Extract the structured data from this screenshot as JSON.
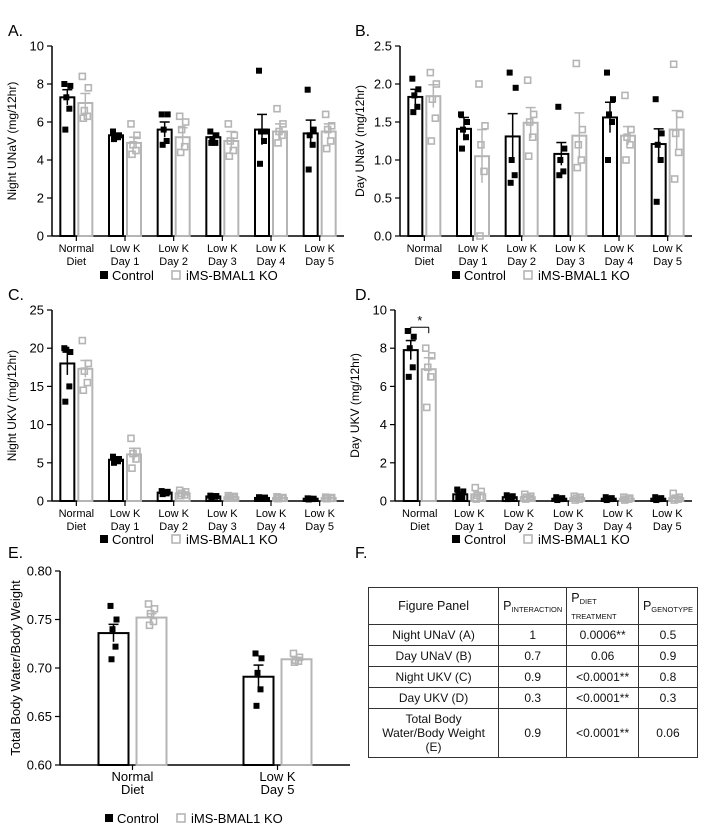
{
  "colors": {
    "control": "#000000",
    "ko": "#b5b5b5"
  },
  "legend": {
    "control": "Control",
    "ko": "iMS-BMAL1 KO"
  },
  "panels": {
    "a": {
      "letter": "A."
    },
    "b": {
      "letter": "B."
    },
    "c": {
      "letter": "C."
    },
    "d": {
      "letter": "D."
    },
    "e": {
      "letter": "E."
    },
    "f": {
      "letter": "F."
    }
  },
  "chart_data": [
    {
      "id": "A",
      "type": "bar",
      "ylabel": "Night UNaV (mg/12hr)",
      "ylim": [
        0,
        10
      ],
      "yticks": [
        0,
        2,
        4,
        6,
        8,
        10
      ],
      "ytick_labels": [
        "0",
        "2",
        "4",
        "6",
        "8",
        "10"
      ],
      "categories": [
        [
          "Normal",
          "Diet"
        ],
        [
          "Low K",
          "Day 1"
        ],
        [
          "Low K",
          "Day 2"
        ],
        [
          "Low K",
          "Day 3"
        ],
        [
          "Low K",
          "Day 4"
        ],
        [
          "Low K",
          "Day 5"
        ]
      ],
      "series": [
        {
          "name": "Control",
          "values": [
            7.3,
            5.3,
            5.6,
            5.2,
            5.6,
            5.4
          ],
          "sem": [
            0.4,
            0.1,
            0.4,
            0.2,
            0.8,
            0.7
          ],
          "points": [
            [
              8.0,
              7.9,
              7.3,
              6.7,
              5.6
            ],
            [
              5.5,
              5.3,
              5.2,
              5.2,
              5.1
            ],
            [
              6.4,
              6.4,
              5.6,
              5.0,
              4.8
            ],
            [
              5.5,
              5.3,
              5.1,
              4.9,
              4.9
            ],
            [
              8.7,
              5.5,
              5.5,
              5.0,
              3.8
            ],
            [
              7.7,
              5.6,
              5.3,
              4.8,
              3.5
            ]
          ]
        },
        {
          "name": "iMS-BMAL1 KO",
          "values": [
            7.0,
            4.9,
            5.2,
            5.0,
            5.5,
            5.5
          ],
          "sem": [
            0.5,
            0.3,
            0.5,
            0.5,
            0.4,
            0.4
          ],
          "points": [
            [
              8.4,
              7.8,
              6.6,
              6.3,
              6.2
            ],
            [
              5.9,
              5.3,
              4.8,
              4.5,
              4.3
            ],
            [
              6.3,
              6.0,
              5.6,
              4.7,
              4.4
            ],
            [
              5.9,
              5.3,
              5.0,
              4.5,
              4.2
            ],
            [
              6.7,
              5.9,
              5.5,
              5.3,
              4.9
            ],
            [
              6.4,
              5.8,
              5.6,
              5.0,
              4.6
            ]
          ]
        }
      ]
    },
    {
      "id": "B",
      "type": "bar",
      "ylabel": "Day UNaV (mg/12hr)",
      "ylim": [
        0,
        2.5
      ],
      "yticks": [
        0,
        0.5,
        1,
        1.5,
        2,
        2.5
      ],
      "ytick_labels": [
        "0.0",
        "0.5",
        "1.0",
        "1.5",
        "2.0",
        "2.5"
      ],
      "categories": [
        [
          "Normal",
          "Diet"
        ],
        [
          "Low K",
          "Day 1"
        ],
        [
          "Low K",
          "Day 2"
        ],
        [
          "Low K",
          "Day 3"
        ],
        [
          "Low K",
          "Day 4"
        ],
        [
          "Low K",
          "Day 5"
        ]
      ],
      "series": [
        {
          "name": "Control",
          "values": [
            1.83,
            1.41,
            1.31,
            1.08,
            1.56,
            1.21
          ],
          "sem": [
            0.1,
            0.15,
            0.3,
            0.15,
            0.2,
            0.2
          ],
          "points": [
            [
              2.07,
              1.93,
              1.85,
              1.7,
              1.63
            ],
            [
              1.6,
              1.5,
              1.4,
              1.3,
              1.15
            ],
            [
              2.15,
              1.95,
              1.0,
              0.8,
              0.7
            ],
            [
              1.7,
              1.15,
              1.0,
              0.85,
              0.8
            ],
            [
              2.15,
              1.8,
              1.6,
              1.5,
              1.0
            ],
            [
              1.8,
              1.35,
              1.2,
              1.0,
              0.45
            ]
          ]
        },
        {
          "name": "iMS-BMAL1 KO",
          "values": [
            1.84,
            1.05,
            1.49,
            1.32,
            1.32,
            1.4
          ],
          "sem": [
            0.15,
            0.35,
            0.2,
            0.3,
            0.12,
            0.25
          ],
          "points": [
            [
              2.15,
              2.0,
              1.8,
              1.55,
              1.25
            ],
            [
              2.0,
              1.45,
              1.2,
              0.85,
              0.0
            ],
            [
              2.05,
              1.6,
              1.5,
              1.3,
              1.05
            ],
            [
              2.27,
              1.4,
              1.2,
              1.0,
              0.9
            ],
            [
              1.85,
              1.4,
              1.3,
              1.2,
              1.0
            ],
            [
              2.26,
              1.6,
              1.35,
              1.1,
              0.75
            ]
          ]
        }
      ]
    },
    {
      "id": "C",
      "type": "bar",
      "ylabel": "Night UKV (mg/12hr)",
      "ylim": [
        0,
        25
      ],
      "yticks": [
        0,
        5,
        10,
        15,
        20,
        25
      ],
      "ytick_labels": [
        "0",
        "5",
        "10",
        "15",
        "20",
        "25"
      ],
      "categories": [
        [
          "Normal",
          "Diet"
        ],
        [
          "Low K",
          "Day 1"
        ],
        [
          "Low K",
          "Day 2"
        ],
        [
          "Low K",
          "Day 3"
        ],
        [
          "Low K",
          "Day 4"
        ],
        [
          "Low K",
          "Day 5"
        ]
      ],
      "series": [
        {
          "name": "Control",
          "values": [
            18.0,
            5.4,
            1.1,
            0.6,
            0.4,
            0.3
          ],
          "sem": [
            1.5,
            0.2,
            0.1,
            0.1,
            0.05,
            0.05
          ],
          "points": [
            [
              20.0,
              19.5,
              19.8,
              15.0,
              13.0
            ],
            [
              5.8,
              5.5,
              5.4,
              5.2,
              5.0
            ],
            [
              1.3,
              1.2,
              1.1,
              1.0,
              0.9
            ],
            [
              0.7,
              0.65,
              0.6,
              0.55,
              0.5
            ],
            [
              0.5,
              0.45,
              0.4,
              0.35,
              0.3
            ],
            [
              0.35,
              0.3,
              0.3,
              0.25,
              0.2
            ]
          ]
        },
        {
          "name": "iMS-BMAL1 KO",
          "values": [
            17.3,
            6.1,
            1.0,
            0.5,
            0.4,
            0.4
          ],
          "sem": [
            1.1,
            0.8,
            0.15,
            0.1,
            0.05,
            0.05
          ],
          "points": [
            [
              21.0,
              18.0,
              17.0,
              15.5,
              14.5
            ],
            [
              8.2,
              6.5,
              6.2,
              5.5,
              4.3
            ],
            [
              1.4,
              1.2,
              1.0,
              0.8,
              0.7
            ],
            [
              0.7,
              0.6,
              0.5,
              0.45,
              0.4
            ],
            [
              0.55,
              0.45,
              0.4,
              0.35,
              0.3
            ],
            [
              0.5,
              0.45,
              0.4,
              0.35,
              0.3
            ]
          ]
        }
      ]
    },
    {
      "id": "D",
      "type": "bar",
      "ylabel": "Day UKV (mg/12hr)",
      "ylim": [
        0,
        10
      ],
      "yticks": [
        0,
        2,
        4,
        6,
        8,
        10
      ],
      "ytick_labels": [
        "0",
        "2",
        "4",
        "6",
        "8",
        "10"
      ],
      "categories": [
        [
          "Normal",
          "Diet"
        ],
        [
          "Low K",
          "Day 1"
        ],
        [
          "Low K",
          "Day 2"
        ],
        [
          "Low K",
          "Day 3"
        ],
        [
          "Low K",
          "Day 4"
        ],
        [
          "Low K",
          "Day 5"
        ]
      ],
      "annotation": {
        "text": "*",
        "between": [
          0,
          1
        ],
        "y": 9.1
      },
      "series": [
        {
          "name": "Control",
          "values": [
            7.9,
            0.35,
            0.2,
            0.12,
            0.12,
            0.12
          ],
          "sem": [
            0.5,
            0.1,
            0.05,
            0.03,
            0.03,
            0.03
          ],
          "points": [
            [
              8.9,
              8.6,
              8.0,
              7.0,
              6.5
            ],
            [
              0.6,
              0.5,
              0.3,
              0.2,
              0.15
            ],
            [
              0.3,
              0.25,
              0.2,
              0.15,
              0.1
            ],
            [
              0.2,
              0.15,
              0.1,
              0.1,
              0.05
            ],
            [
              0.2,
              0.15,
              0.1,
              0.1,
              0.05
            ],
            [
              0.2,
              0.15,
              0.1,
              0.1,
              0.05
            ]
          ]
        },
        {
          "name": "iMS-BMAL1 KO",
          "values": [
            6.9,
            0.35,
            0.2,
            0.15,
            0.12,
            0.15
          ],
          "sem": [
            0.6,
            0.1,
            0.05,
            0.03,
            0.03,
            0.05
          ],
          "points": [
            [
              8.0,
              7.6,
              7.0,
              6.5,
              4.9
            ],
            [
              0.7,
              0.5,
              0.3,
              0.2,
              0.1
            ],
            [
              0.35,
              0.25,
              0.2,
              0.15,
              0.1
            ],
            [
              0.25,
              0.2,
              0.15,
              0.1,
              0.05
            ],
            [
              0.2,
              0.15,
              0.1,
              0.1,
              0.05
            ],
            [
              0.4,
              0.2,
              0.15,
              0.1,
              0.05
            ]
          ]
        }
      ]
    },
    {
      "id": "E",
      "type": "bar",
      "ylabel": "Total Body Water/Body Weight",
      "ylim": [
        0.6,
        0.8
      ],
      "yticks": [
        0.6,
        0.65,
        0.7,
        0.75,
        0.8
      ],
      "ytick_labels": [
        "0.60",
        "0.65",
        "0.70",
        "0.75",
        "0.80"
      ],
      "categories": [
        [
          "Normal",
          "Diet"
        ],
        [
          "Low K",
          "Day 5"
        ]
      ],
      "series": [
        {
          "name": "Control",
          "values": [
            0.736,
            0.691
          ],
          "sem": [
            0.009,
            0.012
          ],
          "points": [
            [
              0.764,
              0.75,
              0.74,
              0.722,
              0.709
            ],
            [
              0.715,
              0.71,
              0.695,
              0.678,
              0.661
            ]
          ]
        },
        {
          "name": "iMS-BMAL1 KO",
          "values": [
            0.752,
            0.709
          ],
          "sem": [
            0.004,
            0.002
          ],
          "points": [
            [
              0.766,
              0.761,
              0.756,
              0.748,
              0.744
            ],
            [
              0.715,
              0.711,
              0.708,
              0.707,
              0.706
            ]
          ]
        }
      ]
    }
  ],
  "stats_table": {
    "headers": {
      "panel": "Figure Panel",
      "p": "P",
      "interaction": "INTERACTION",
      "diet": "DIET TREATMENT",
      "genotype": "GENOTYPE"
    },
    "rows": [
      {
        "panel": "Night UNaV (A)",
        "interaction": "1",
        "diet": "0.0006**",
        "genotype": "0.5"
      },
      {
        "panel": "Day UNaV (B)",
        "interaction": "0.7",
        "diet": "0.06",
        "genotype": "0.9"
      },
      {
        "panel": "Night UKV (C)",
        "interaction": "0.9",
        "diet": "<0.0001**",
        "genotype": "0.8"
      },
      {
        "panel": "Day UKV (D)",
        "interaction": "0.3",
        "diet": "<0.0001**",
        "genotype": "0.3"
      },
      {
        "panel": "Total Body Water/Body Weight (E)",
        "interaction": "0.9",
        "diet": "<0.0001**",
        "genotype": "0.06"
      }
    ]
  }
}
